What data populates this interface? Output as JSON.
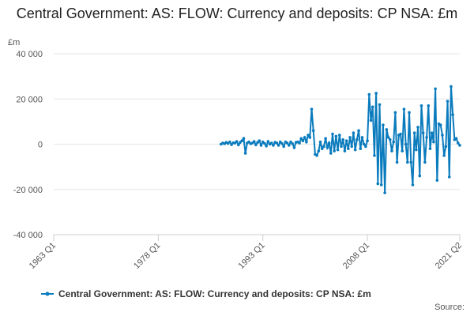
{
  "chart_data": {
    "type": "line",
    "title": "Central Government: AS: FLOW: Currency and deposits: CP NSA: £m",
    "y_unit": "£m",
    "source": "Source:",
    "xlim": [
      "1963 Q1",
      "2021 Q2"
    ],
    "xticks": [
      "1963 Q1",
      "1978 Q1",
      "1993 Q1",
      "2008 Q1",
      "2021 Q2"
    ],
    "ylim": [
      -40000,
      40000
    ],
    "yticks": [
      {
        "value": -40000,
        "label": "-40 000"
      },
      {
        "value": -20000,
        "label": "-20 000"
      },
      0,
      {
        "value": 20000,
        "label": "20 000"
      },
      {
        "value": 40000,
        "label": "40 000"
      }
    ],
    "grid": true,
    "x": [
      "1987 Q1",
      "1987 Q2",
      "1987 Q3",
      "1987 Q4",
      "1988 Q1",
      "1988 Q2",
      "1988 Q3",
      "1988 Q4",
      "1989 Q1",
      "1989 Q2",
      "1989 Q3",
      "1989 Q4",
      "1990 Q1",
      "1990 Q2",
      "1990 Q3",
      "1990 Q4",
      "1991 Q1",
      "1991 Q2",
      "1991 Q3",
      "1991 Q4",
      "1992 Q1",
      "1992 Q2",
      "1992 Q3",
      "1992 Q4",
      "1993 Q1",
      "1993 Q2",
      "1993 Q3",
      "1993 Q4",
      "1994 Q1",
      "1994 Q2",
      "1994 Q3",
      "1994 Q4",
      "1995 Q1",
      "1995 Q2",
      "1995 Q3",
      "1995 Q4",
      "1996 Q1",
      "1996 Q2",
      "1996 Q3",
      "1996 Q4",
      "1997 Q1",
      "1997 Q2",
      "1997 Q3",
      "1997 Q4",
      "1998 Q1",
      "1998 Q2",
      "1998 Q3",
      "1998 Q4",
      "1999 Q1",
      "1999 Q2",
      "1999 Q3",
      "1999 Q4",
      "2000 Q1",
      "2000 Q2",
      "2000 Q3",
      "2000 Q4",
      "2001 Q1",
      "2001 Q2",
      "2001 Q3",
      "2001 Q4",
      "2002 Q1",
      "2002 Q2",
      "2002 Q3",
      "2002 Q4",
      "2003 Q1",
      "2003 Q2",
      "2003 Q3",
      "2003 Q4",
      "2004 Q1",
      "2004 Q2",
      "2004 Q3",
      "2004 Q4",
      "2005 Q1",
      "2005 Q2",
      "2005 Q3",
      "2005 Q4",
      "2006 Q1",
      "2006 Q2",
      "2006 Q3",
      "2006 Q4",
      "2007 Q1",
      "2007 Q2",
      "2007 Q3",
      "2007 Q4",
      "2008 Q1",
      "2008 Q2",
      "2008 Q3",
      "2008 Q4",
      "2009 Q1",
      "2009 Q2",
      "2009 Q3",
      "2009 Q4",
      "2010 Q1",
      "2010 Q2",
      "2010 Q3",
      "2010 Q4",
      "2011 Q1",
      "2011 Q2",
      "2011 Q3",
      "2011 Q4",
      "2012 Q1",
      "2012 Q2",
      "2012 Q3",
      "2012 Q4",
      "2013 Q1",
      "2013 Q2",
      "2013 Q3",
      "2013 Q4",
      "2014 Q1",
      "2014 Q2",
      "2014 Q3",
      "2014 Q4",
      "2015 Q1",
      "2015 Q2",
      "2015 Q3",
      "2015 Q4",
      "2016 Q1",
      "2016 Q2",
      "2016 Q3",
      "2016 Q4",
      "2017 Q1",
      "2017 Q2",
      "2017 Q3",
      "2017 Q4",
      "2018 Q1",
      "2018 Q2",
      "2018 Q3",
      "2018 Q4",
      "2019 Q1",
      "2019 Q2",
      "2019 Q3",
      "2019 Q4",
      "2020 Q1",
      "2020 Q2",
      "2020 Q3",
      "2020 Q4",
      "2021 Q1",
      "2021 Q2"
    ],
    "series": [
      {
        "name": "Central Government: AS: FLOW: Currency and deposits: CP NSA: £m",
        "color": "#0a7bbd",
        "values": [
          0,
          500,
          200,
          800,
          300,
          1000,
          -200,
          600,
          500,
          1200,
          -300,
          800,
          1500,
          2500,
          -4000,
          500,
          1000,
          200,
          500,
          1200,
          -300,
          800,
          1500,
          -500,
          1000,
          300,
          -800,
          1200,
          0,
          500,
          -500,
          800,
          500,
          -500,
          1000,
          300,
          -1000,
          1000,
          500,
          -500,
          1000,
          200,
          -1500,
          800,
          1000,
          500,
          2500,
          1500,
          3000,
          1000,
          4000,
          3000,
          15500,
          6000,
          -4500,
          -5000,
          -3000,
          1000,
          -2000,
          -1000,
          2500,
          -1500,
          500,
          -4000,
          4500,
          -3000,
          3500,
          -2500,
          4000,
          -1000,
          2000,
          -3000,
          1500,
          -2000,
          3000,
          -1000,
          5000,
          -2500,
          2000,
          6000,
          -2000,
          3000,
          0,
          -1000,
          1500,
          22000,
          10500,
          16500,
          -5000,
          22500,
          -17500,
          17500,
          -18000,
          8500,
          -21500,
          6500,
          3000,
          2000,
          -3000,
          1000,
          14000,
          -8000,
          4000,
          4500,
          -3000,
          15500,
          0,
          -8000,
          14000,
          -8000,
          -18000,
          5000,
          -2500,
          7500,
          -14000,
          17000,
          5000,
          -8000,
          3000,
          17000,
          -2000,
          5000,
          1000,
          24500,
          -16000,
          9000,
          8500,
          4000,
          -5000,
          -1000,
          19000,
          -14500,
          25500,
          13000,
          2000,
          2500,
          500,
          -500
        ]
      }
    ]
  }
}
